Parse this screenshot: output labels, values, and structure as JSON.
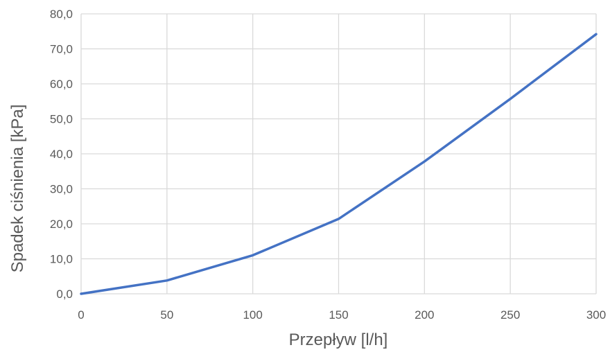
{
  "chart_data": {
    "type": "line",
    "title": "",
    "xlabel": "Przepływ [l/h]",
    "ylabel": "Spadek ciśnienia [kPa]",
    "x": [
      0,
      50,
      100,
      150,
      200,
      250,
      300
    ],
    "xticks": [
      "0",
      "50",
      "100",
      "150",
      "200",
      "250",
      "300"
    ],
    "yticks": [
      "0,0",
      "10,0",
      "20,0",
      "30,0",
      "40,0",
      "50,0",
      "60,0",
      "70,0",
      "80,0"
    ],
    "xlim": [
      0,
      300
    ],
    "ylim": [
      0,
      80
    ],
    "grid": true,
    "series": [
      {
        "values": [
          0.0,
          3.8,
          11.0,
          21.4,
          37.8,
          55.7,
          74.2
        ],
        "color": "#4472C4"
      }
    ]
  }
}
